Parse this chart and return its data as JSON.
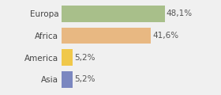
{
  "categories": [
    "Europa",
    "Africa",
    "America",
    "Asia"
  ],
  "values": [
    48.1,
    41.6,
    5.2,
    5.2
  ],
  "labels": [
    "48,1%",
    "41,6%",
    "5,2%",
    "5,2%"
  ],
  "bar_colors": [
    "#a8bf8a",
    "#e8b882",
    "#f0c84a",
    "#7b87c0"
  ],
  "background_color": "#f0f0f0",
  "xlim": [
    0,
    62
  ],
  "label_fontsize": 7.5,
  "category_fontsize": 7.5,
  "bar_height": 0.75
}
